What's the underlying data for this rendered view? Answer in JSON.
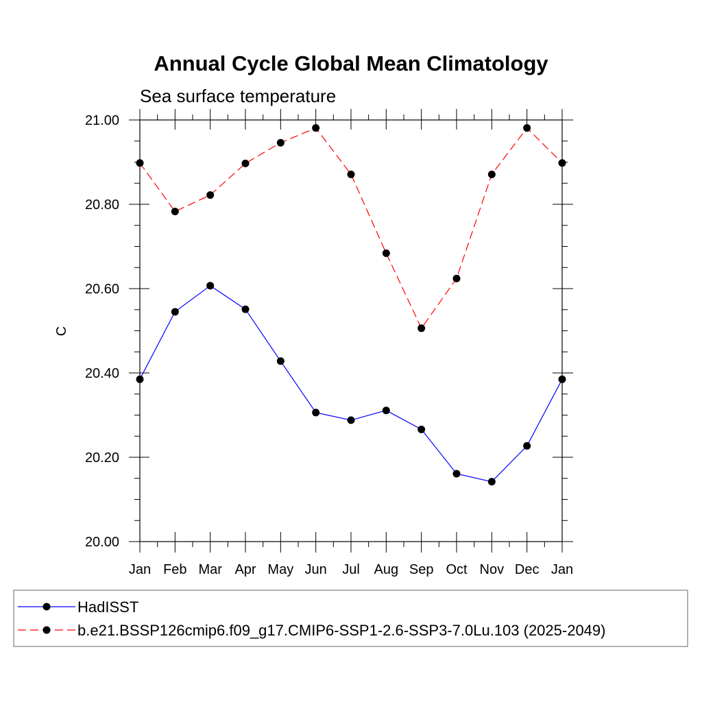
{
  "chart_data": {
    "type": "line",
    "title": "Annual Cycle Global Mean Climatology",
    "subtitle": "Sea surface temperature",
    "xlabel": "",
    "ylabel": "C",
    "categories": [
      "Jan",
      "Feb",
      "Mar",
      "Apr",
      "May",
      "Jun",
      "Jul",
      "Aug",
      "Sep",
      "Oct",
      "Nov",
      "Dec",
      "Jan"
    ],
    "ylim": [
      20.0,
      21.0
    ],
    "yticks": [
      20.0,
      20.2,
      20.4,
      20.6,
      20.8,
      21.0
    ],
    "ytick_labels": [
      "20.00",
      "20.20",
      "20.40",
      "20.60",
      "20.80",
      "21.00"
    ],
    "grid": false,
    "legend_position": "bottom",
    "series": [
      {
        "name": "HadISST",
        "color": "#0000ff",
        "line_style": "solid",
        "marker": "filled-circle",
        "values": [
          20.385,
          20.545,
          20.607,
          20.551,
          20.428,
          20.306,
          20.288,
          20.311,
          20.266,
          20.161,
          20.142,
          20.227,
          20.385
        ]
      },
      {
        "name": "b.e21.BSSP126cmip6.f09_g17.CMIP6-SSP1-2.6-SSP3-7.0Lu.103 (2025-2049)",
        "color": "#ff0000",
        "line_style": "dashed",
        "marker": "filled-circle",
        "values": [
          20.898,
          20.783,
          20.822,
          20.897,
          20.946,
          20.981,
          20.871,
          20.684,
          20.506,
          20.624,
          20.871,
          20.981,
          20.898
        ]
      }
    ]
  }
}
